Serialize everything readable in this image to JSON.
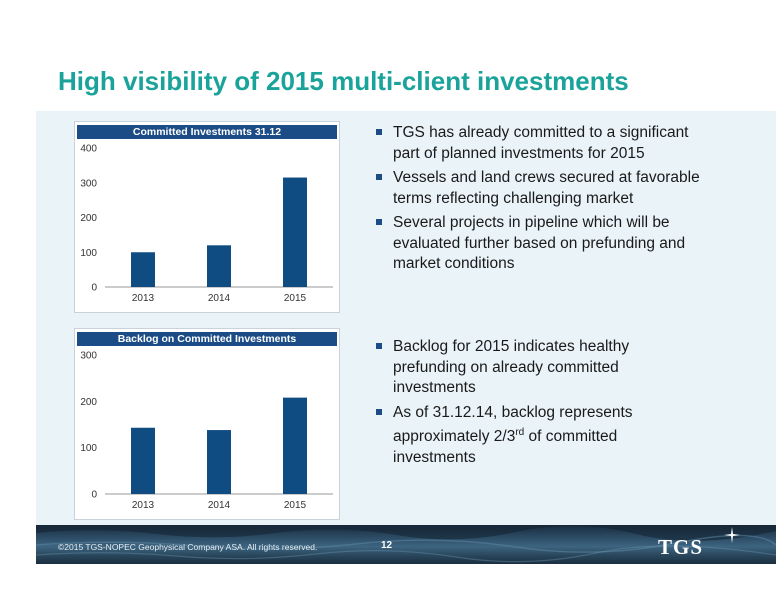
{
  "slide": {
    "title": "High visibility of 2015 multi-client investments"
  },
  "chart_data": [
    {
      "type": "bar",
      "title": "Committed Investments 31.12",
      "categories": [
        "2013",
        "2014",
        "2015"
      ],
      "values": [
        100,
        120,
        315
      ],
      "ylim": [
        0,
        400
      ],
      "yticks": [
        0,
        100,
        200,
        300,
        400
      ],
      "color": "#0f4c81",
      "grid": false
    },
    {
      "type": "bar",
      "title": "Backlog on Committed Investments",
      "categories": [
        "2013",
        "2014",
        "2015"
      ],
      "values": [
        143,
        138,
        208
      ],
      "ylim": [
        0,
        300
      ],
      "yticks": [
        0,
        100,
        200,
        300
      ],
      "color": "#0f4c81",
      "grid": false
    }
  ],
  "bullets_top": [
    "TGS has already committed to a significant part of planned investments for 2015",
    "Vessels and land crews secured at favorable terms reflecting challenging market",
    "Several projects in pipeline which will be evaluated further based on prefunding and market conditions"
  ],
  "bullets_bottom": {
    "item1": "Backlog for 2015 indicates healthy prefunding on already committed investments",
    "item2_before": "As of 31.12.14, backlog represents approximately 2/3",
    "item2_sup": "rd",
    "item2_after": " of committed investments"
  },
  "footer": {
    "copyright": "©2015 TGS-NOPEC Geophysical Company ASA. All rights reserved.",
    "page_number": "12",
    "logo": "TGS"
  },
  "colors": {
    "title": "#1aa39a",
    "header_bg": "#1b4c86",
    "bar": "#0f4c81",
    "panel_bg": "#e9f3f8"
  }
}
